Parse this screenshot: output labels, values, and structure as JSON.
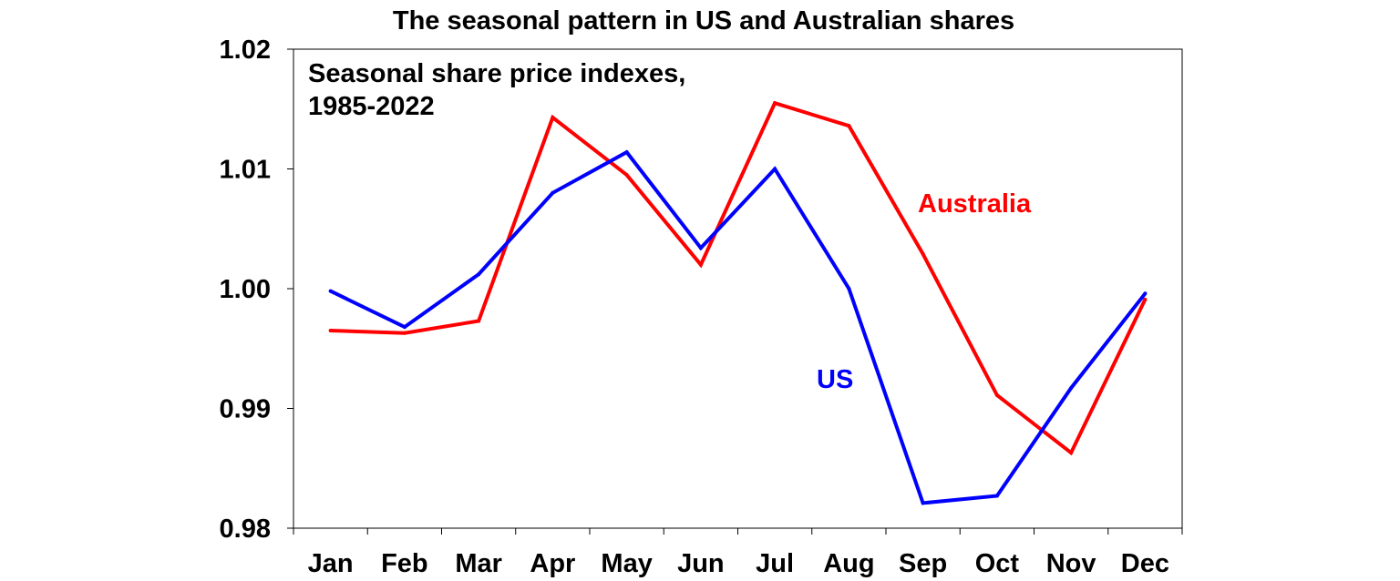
{
  "chart_data": {
    "type": "line",
    "title": "The seasonal pattern in US and Australian shares",
    "annotation_line1": "Seasonal share price indexes,",
    "annotation_line2": "1985-2022",
    "categories": [
      "Jan",
      "Feb",
      "Mar",
      "Apr",
      "May",
      "Jun",
      "Jul",
      "Aug",
      "Sep",
      "Oct",
      "Nov",
      "Dec"
    ],
    "ylim": [
      0.98,
      1.02
    ],
    "yticks": [
      0.98,
      0.99,
      1.0,
      1.01,
      1.02
    ],
    "ytick_labels": [
      "0.98",
      "0.99",
      "1.00",
      "1.01",
      "1.02"
    ],
    "xlabel": "",
    "ylabel": "",
    "grid": false,
    "series": [
      {
        "name": "Australia",
        "label": "Australia",
        "color": "#ff0000",
        "values": [
          0.9965,
          0.9963,
          0.9973,
          1.0143,
          1.0095,
          1.002,
          1.0155,
          1.0136,
          1.0029,
          0.9911,
          0.9863,
          0.9991
        ]
      },
      {
        "name": "US",
        "label": "US",
        "color": "#0000ff",
        "values": [
          0.9998,
          0.9968,
          1.0012,
          1.008,
          1.0114,
          1.0034,
          1.01,
          1.0,
          0.9821,
          0.9827,
          0.9917,
          0.9996
        ]
      }
    ]
  }
}
